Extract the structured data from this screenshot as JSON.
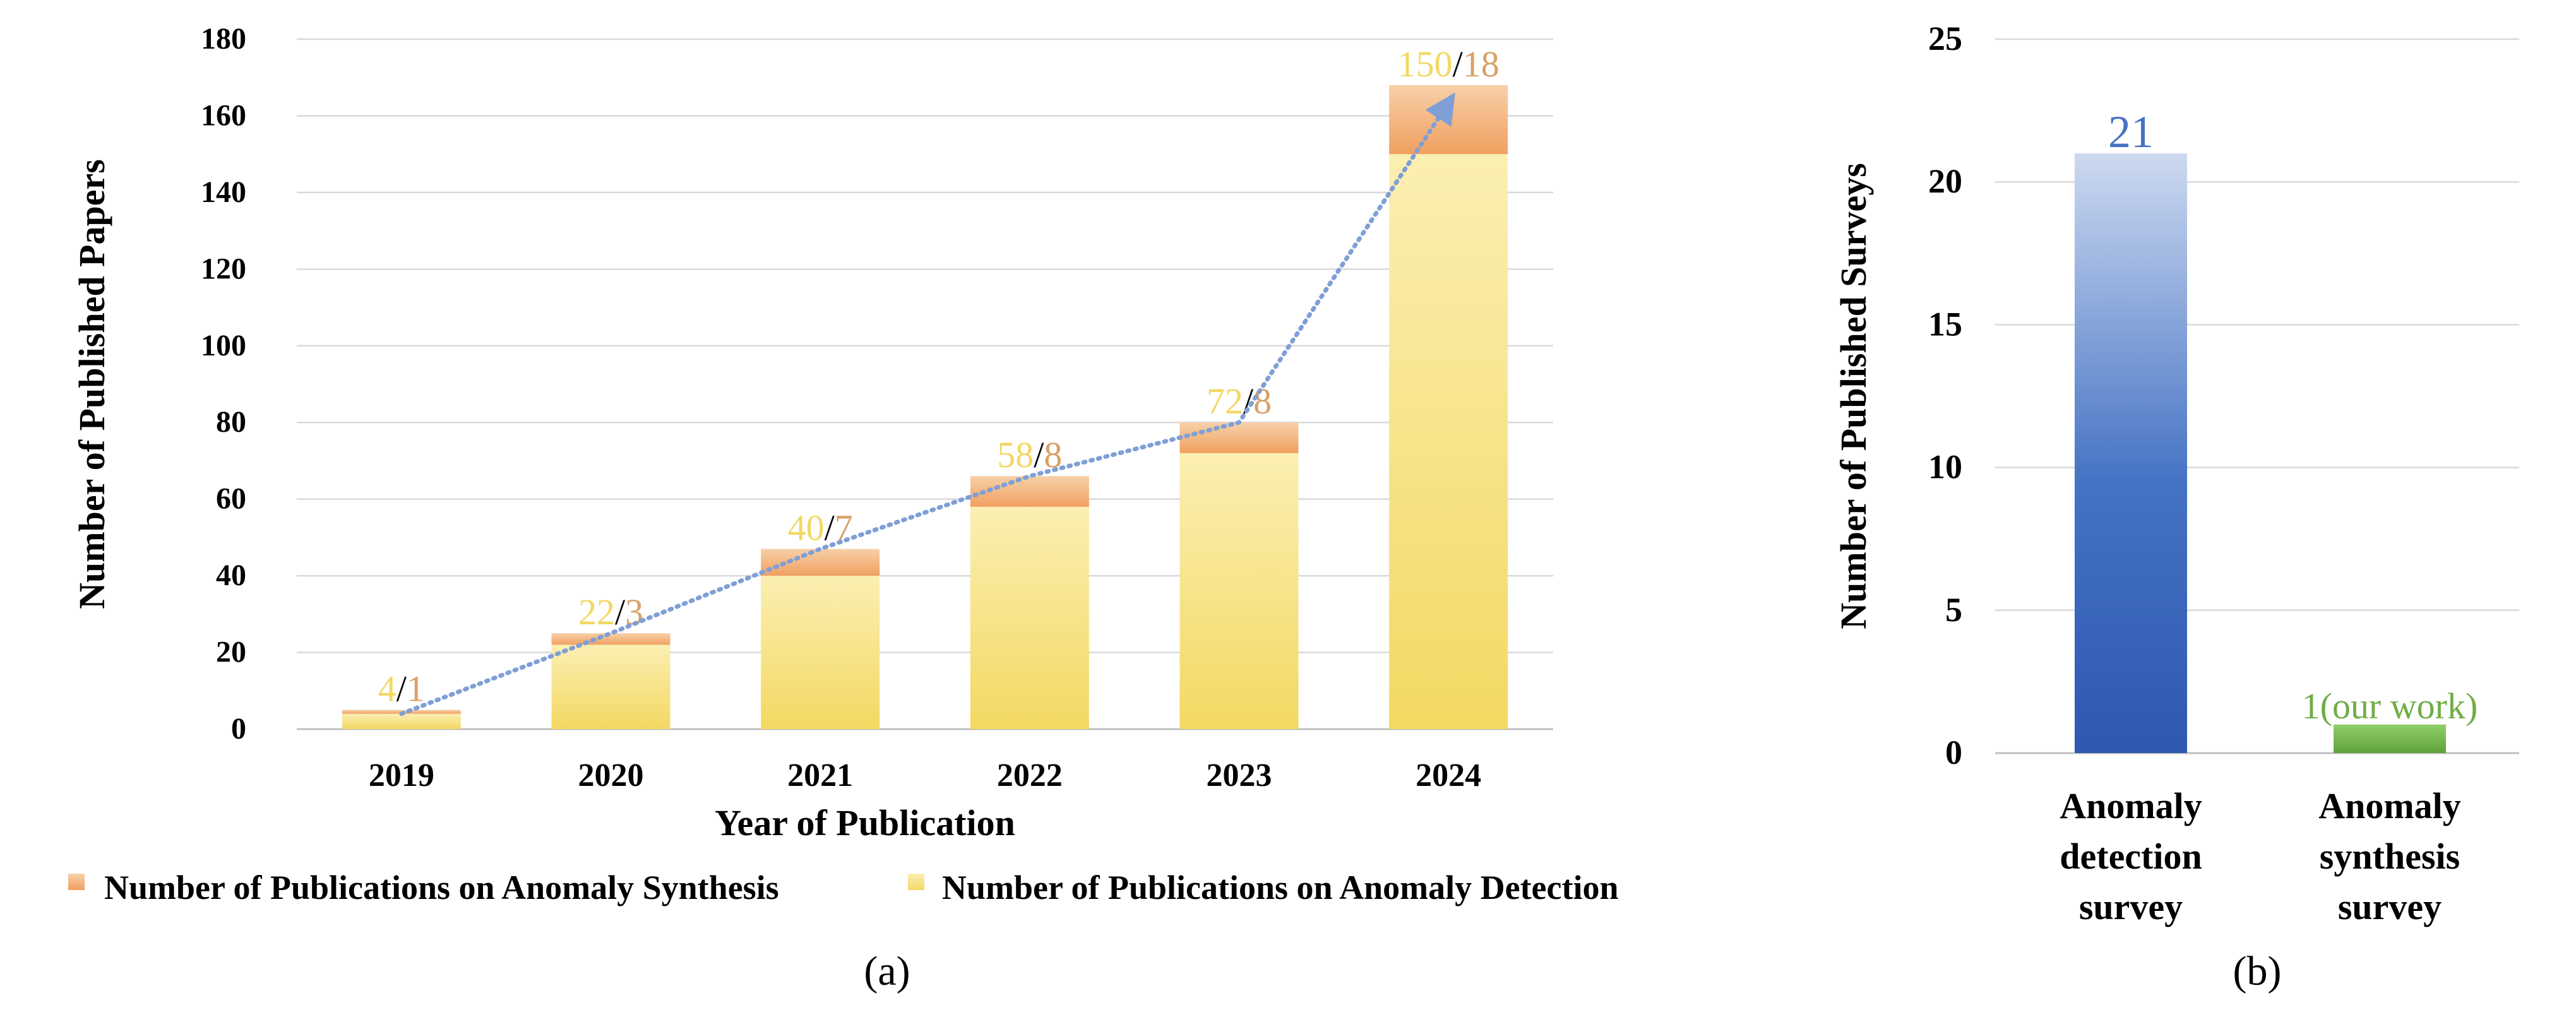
{
  "chart_data": [
    {
      "type": "bar",
      "stacked": true,
      "xlabel": "Year of Publication",
      "ylabel": "Number of Published Papers",
      "ylim": [
        0,
        180
      ],
      "yticks": [
        0,
        20,
        40,
        60,
        80,
        100,
        120,
        140,
        160,
        180
      ],
      "categories": [
        "2019",
        "2020",
        "2021",
        "2022",
        "2023",
        "2024"
      ],
      "series": [
        {
          "name": "Number of Publications on Anomaly Detection",
          "values": [
            4,
            22,
            40,
            58,
            72,
            150
          ],
          "color": "#f3d862"
        },
        {
          "name": "Number of Publications on Anomaly Synthesis",
          "values": [
            1,
            3,
            7,
            8,
            8,
            18
          ],
          "color": "#f1a86a"
        }
      ],
      "data_labels": [
        {
          "detection": "4",
          "sep": "/",
          "synthesis": "1"
        },
        {
          "detection": "22",
          "sep": "/",
          "synthesis": "3"
        },
        {
          "detection": "40",
          "sep": "/",
          "synthesis": "7"
        },
        {
          "detection": "58",
          "sep": "/",
          "synthesis": "8"
        },
        {
          "detection": "72",
          "sep": "/",
          "synthesis": "8"
        },
        {
          "detection": "150",
          "sep": "/",
          "synthesis": "18"
        }
      ],
      "trend_line": {
        "style": "dotted",
        "color": "#7f9fd6",
        "arrow": true
      },
      "grid": true,
      "legend": "bottom",
      "caption": "(a)"
    },
    {
      "type": "bar",
      "ylabel": "Number of Published Surveys",
      "ylim": [
        0,
        25
      ],
      "yticks": [
        0,
        5,
        10,
        15,
        20,
        25
      ],
      "categories": [
        "Anomaly detection survey",
        "Anomaly synthesis survey"
      ],
      "category_lines": [
        [
          "Anomaly",
          "detection",
          "survey"
        ],
        [
          "Anomaly",
          "synthesis",
          "survey"
        ]
      ],
      "values": [
        21,
        1
      ],
      "data_labels": [
        "21",
        "1(our work)"
      ],
      "colors": [
        "#3a62bd",
        "#70ad47"
      ],
      "label_colors": [
        "#4472c4",
        "#70ad47"
      ],
      "grid": true,
      "caption": "(b)"
    }
  ]
}
